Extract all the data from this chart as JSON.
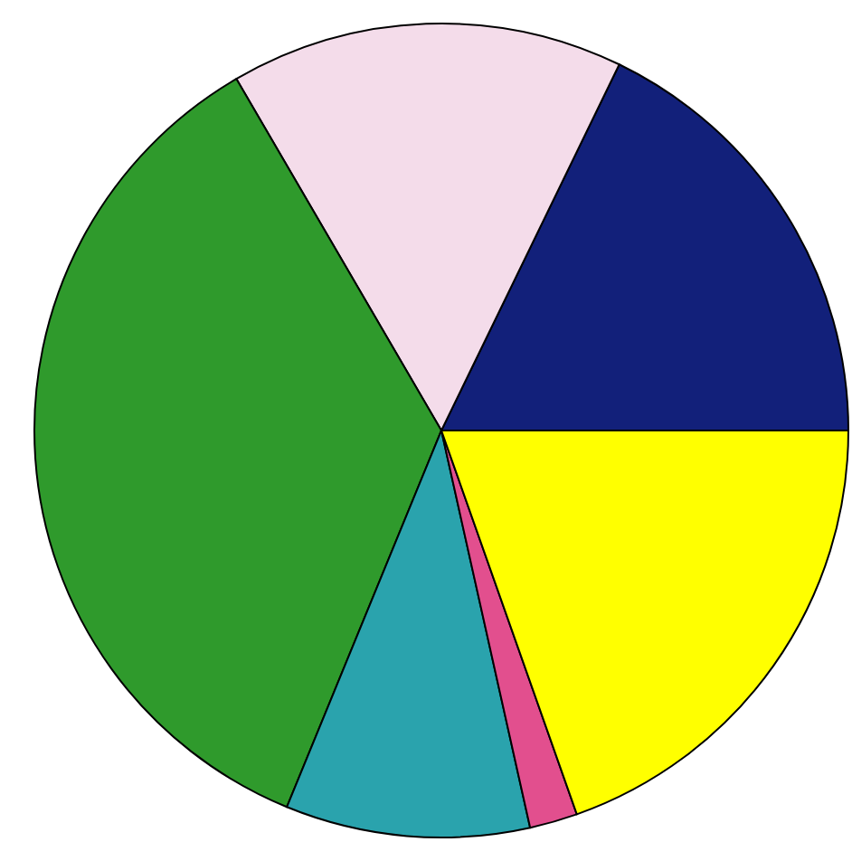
{
  "chart_data": {
    "type": "pie",
    "categories": [
      null,
      null,
      null,
      null,
      null,
      null
    ],
    "values": [
      17.8,
      15.6,
      35.4,
      9.7,
      1.9,
      19.6
    ],
    "colors": [
      "#12207a",
      "#f4dcea",
      "#2f9a2c",
      "#2aa3ad",
      "#e24f8e",
      "#ffff00"
    ]
  }
}
